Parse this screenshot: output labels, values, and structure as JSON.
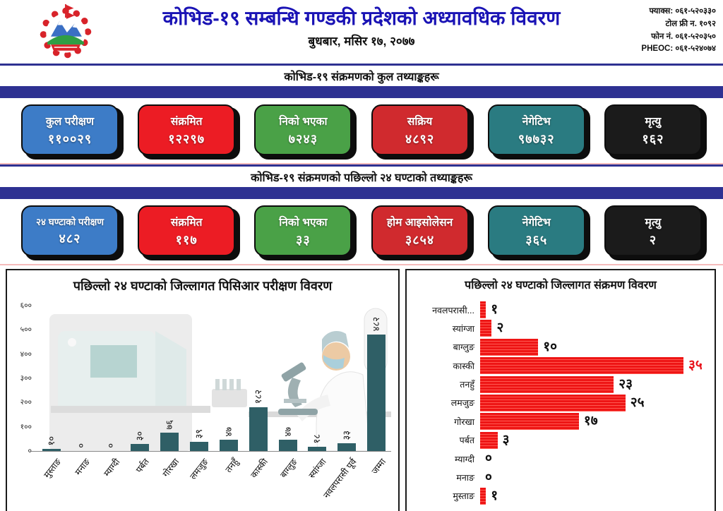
{
  "header": {
    "title": "कोभिड-१९ सम्बन्धि गण्डकी प्रदेशको अध्यावधिक विवरण",
    "date": "बुधबार, मसिर १७, २०७७",
    "logo": "nepal-government-emblem",
    "contacts": [
      "फ्याक्स: ०६१-५२०३३०",
      "टोल फ्री न. १०९२",
      "फोन नं. ०६१-५२०३५०",
      "PHEOC: ०६१-५२४०७४"
    ]
  },
  "theme": {
    "indigo": "#2e3192",
    "title_blue": "#1a13b5",
    "teal_bar": "#2f5f66",
    "red_bar": "#ee1515"
  },
  "sections": [
    {
      "title": "कोभिड-१९ संक्रमणको कुल तथ्याङ्कहरू",
      "cards": [
        {
          "label": "कुल परीक्षण",
          "value": "११००२९",
          "color": "#3d7cc7"
        },
        {
          "label": "संक्रमित",
          "value": "१२२९७",
          "color": "#ec1c24"
        },
        {
          "label": "निको भएका",
          "value": "७२४३",
          "color": "#4aa147"
        },
        {
          "label": "सक्रिय",
          "value": "४८९२",
          "color": "#d02a2e"
        },
        {
          "label": "नेगेटिभ",
          "value": "९७७३२",
          "color": "#2a7b81"
        },
        {
          "label": "मृत्यु",
          "value": "१६२",
          "color": "#1b1b1b"
        }
      ]
    },
    {
      "title": "कोभिड-१९ संक्रमणको पछिल्लो २४ घण्टाको तथ्याङ्कहरू",
      "cards": [
        {
          "label": "२४ घण्टाको परीक्षण",
          "value": "४८२",
          "color": "#3d7cc7"
        },
        {
          "label": "संक्रमित",
          "value": "११७",
          "color": "#ec1c24"
        },
        {
          "label": "निको भएका",
          "value": "३३",
          "color": "#4aa147"
        },
        {
          "label": "होम आइसोलेसन",
          "value": "३८५४",
          "color": "#d02a2e"
        },
        {
          "label": "नेगेटिभ",
          "value": "३६५",
          "color": "#2a7b81"
        },
        {
          "label": "मृत्यु",
          "value": "२",
          "color": "#1b1b1b"
        }
      ]
    }
  ],
  "chart_data": [
    {
      "type": "bar",
      "orientation": "vertical",
      "title": "पछिल्लो २४ घण्टाको जिल्लागत पिसिआर परीक्षण विवरण",
      "categories": [
        "मुस्ताङ",
        "मनाङ",
        "म्याग्दी",
        "पर्बत",
        "गोरखा",
        "लमजुङ",
        "तनहुँ",
        "कास्की",
        "बाग्लुङ",
        "स्यांग्जा",
        "नवलपरासी पूर्व",
        "जम्मा"
      ],
      "values": [
        10,
        0,
        0,
        30,
        76,
        39,
        47,
        182,
        47,
        18,
        33,
        482
      ],
      "value_labels": [
        "१०",
        "०",
        "०",
        "३०",
        "७६",
        "३९",
        "४७",
        "१८२",
        "४७",
        "१८",
        "३३",
        "४८२"
      ],
      "xlabel": "",
      "ylabel": "",
      "ylim": [
        0,
        600
      ],
      "yticks": [
        0,
        100,
        200,
        300,
        400,
        500,
        600
      ],
      "ytick_labels": [
        "०",
        "१००",
        "२००",
        "३००",
        "४००",
        "५००",
        "६००"
      ],
      "bar_color": "#2f5f66",
      "grid": false,
      "legend": false,
      "background": "laboratory-pcr-illustration"
    },
    {
      "type": "bar",
      "orientation": "horizontal",
      "title": "पछिल्लो २४ घण्टाको जिल्लागत संक्रमण विवरण",
      "categories": [
        "नवलपरासी...",
        "स्यांग्जा",
        "बाग्लुङ",
        "कास्की",
        "तनहुँ",
        "लमजुङ",
        "गोरखा",
        "पर्बत",
        "म्याग्दी",
        "मनाङ",
        "मुस्ताङ"
      ],
      "values": [
        1,
        2,
        10,
        35,
        23,
        25,
        17,
        3,
        0,
        0,
        1
      ],
      "value_labels": [
        "१",
        "२",
        "१०",
        "३५",
        "२३",
        "२५",
        "१७",
        "३",
        "०",
        "०",
        "१"
      ],
      "xlim": [
        0,
        35
      ],
      "bar_color": "#ee1515",
      "highlight_index": 3,
      "highlight_value_color": "#e8111a",
      "grid": false,
      "legend": false
    }
  ]
}
